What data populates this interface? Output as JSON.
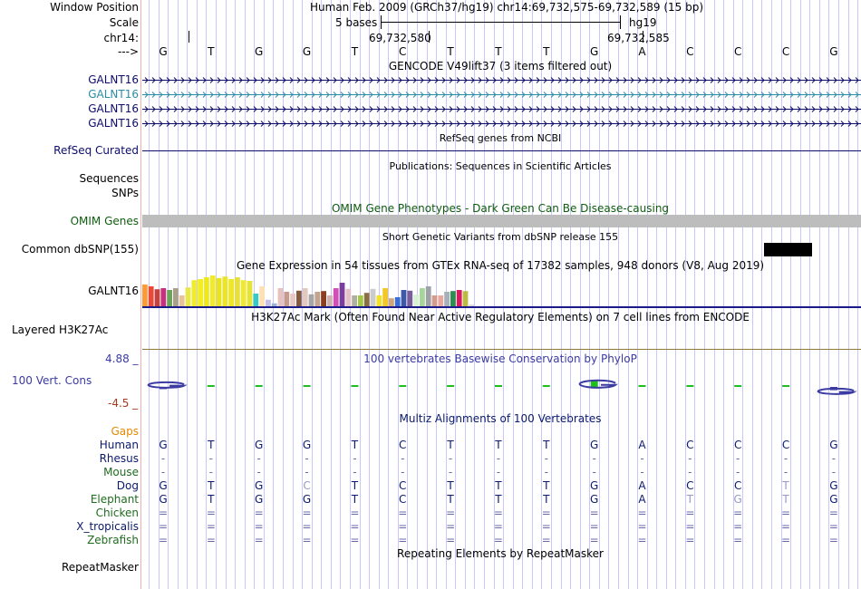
{
  "header": {
    "window_position_label": "Window Position",
    "scale_label": "Scale",
    "chrom_label": "chr14:",
    "arrow_label": "--->",
    "assembly_text": "Human Feb. 2009 (GRCh37/hg19)   chr14:69,732,575-69,732,589 (15 bp)",
    "scale_text": "5 bases",
    "db_text": "hg19",
    "pos_left": "69,732,580",
    "pos_right": "69,732,585"
  },
  "sequence": [
    "G",
    "T",
    "G",
    "G",
    "T",
    "C",
    "T",
    "T",
    "T",
    "G",
    "A",
    "C",
    "C",
    "C",
    "G"
  ],
  "gencode": {
    "title": "GENCODE V49lift37 (3 items filtered out)",
    "items": [
      {
        "label": "GALNT16",
        "color": "#0d0d6b"
      },
      {
        "label": "GALNT16",
        "color": "#2a8ea5"
      },
      {
        "label": "GALNT16",
        "color": "#0d0d6b"
      },
      {
        "label": "GALNT16",
        "color": "#0d0d6b"
      }
    ]
  },
  "refseq": {
    "label": "RefSeq Curated",
    "title": "RefSeq genes from NCBI"
  },
  "publications": {
    "title": "Publications: Sequences in Scientific Articles"
  },
  "sequences_label": "Sequences",
  "snps_label": "SNPs",
  "omim": {
    "label": "OMIM Genes",
    "title": "OMIM Gene Phenotypes - Dark Green Can Be Disease-causing"
  },
  "dbsnp": {
    "label": "Common dbSNP(155)",
    "title": "Short Genetic Variants from dbSNP release 155"
  },
  "gtex": {
    "label": "GALNT16",
    "title": "Gene Expression in 54 tissues from GTEx RNA-seq of 17382 samples, 948 donors (V8, Aug 2019)",
    "bar_levels": [
      0.6,
      0.55,
      0.47,
      0.5,
      0.45,
      0.5,
      0.3,
      0.52,
      0.72,
      0.75,
      0.8,
      0.85,
      0.78,
      0.82,
      0.75,
      0.8,
      0.72,
      0.7,
      0.35,
      0.55,
      0.18,
      0.08,
      0.5,
      0.4,
      0.35,
      0.43,
      0.5,
      0.33,
      0.4,
      0.42,
      0.3,
      0.5,
      0.65,
      0.48,
      0.3,
      0.3,
      0.37,
      0.48,
      0.3,
      0.5,
      0.22,
      0.25,
      0.45,
      0.43,
      0.32,
      0.5,
      0.55,
      0.3,
      0.3,
      0.4,
      0.42,
      0.45,
      0.42,
      0.05
    ],
    "bar_colors": [
      "#ff9933",
      "#e8493a",
      "#c0433f",
      "#c82f7f",
      "#6ea35a",
      "#aaa089",
      "#e6c39b",
      "#e8e84d",
      "#f0ec2b",
      "#f2ee22",
      "#eeea1a",
      "#f0ea32",
      "#e9e422",
      "#ebe428",
      "#ede62a",
      "#e8e035",
      "#efe838",
      "#e6e337",
      "#38c8c8",
      "#ffe0b5",
      "#c4bfe6",
      "#9ab4d6",
      "#e6c1c0",
      "#c79a8c",
      "#e6c8c4",
      "#855a3e",
      "#e3c8c2",
      "#a6a6a6",
      "#c4a48e",
      "#8c3f1f",
      "#d0b0b0",
      "#d24fb8",
      "#7b3d9e",
      "#e6c0c8",
      "#b0b0a0",
      "#a3c845",
      "#8a6f42",
      "#cccccc",
      "#f2e22a",
      "#f2c72a",
      "#d1a575",
      "#3a6ed6",
      "#3d5aa6",
      "#7a5d9a",
      "#d8f0d4",
      "#a6d69a",
      "#9ea1a6",
      "#d49c8c",
      "#e8a8a0",
      "#a6b0b8",
      "#2d8f4e",
      "#d81b60",
      "#bcbc44",
      "#dddddd"
    ]
  },
  "h3k27ac": {
    "label": "Layered H3K27Ac",
    "title": "H3K27Ac Mark (Often Found Near Active Regulatory Elements) on 7 cell lines from ENCODE"
  },
  "phylop": {
    "label": "100 Vert. Cons",
    "title": "100 vertebrates Basewise Conservation by PhyloP",
    "max": "4.88 _",
    "min": "-4.5 _",
    "scores": [
      -0.4,
      0.1,
      0,
      0,
      0.1,
      0,
      0,
      0,
      0,
      1.2,
      0,
      0.1,
      0.1,
      0,
      -0.6
    ]
  },
  "multiz": {
    "title": "Multiz Alignments of 100 Vertebrates",
    "gaps_label": "Gaps",
    "species": [
      {
        "name": "Human",
        "color": "#0b1a6b",
        "bases": [
          "G",
          "T",
          "G",
          "G",
          "T",
          "C",
          "T",
          "T",
          "T",
          "G",
          "A",
          "C",
          "C",
          "C",
          "G"
        ]
      },
      {
        "name": "Rhesus",
        "color": "#0b1a6b",
        "bases": [
          "-",
          "-",
          "-",
          "-",
          "-",
          "-",
          "-",
          "-",
          "-",
          "-",
          "-",
          "-",
          "-",
          "-",
          "-"
        ]
      },
      {
        "name": "Mouse",
        "color": "#1f6b1f",
        "bases": [
          "-",
          "-",
          "-",
          "-",
          "-",
          "-",
          "-",
          "-",
          "-",
          "-",
          "-",
          "-",
          "-",
          "-",
          "-"
        ]
      },
      {
        "name": "Dog",
        "color": "#0b1a6b",
        "bases": [
          "G",
          "T",
          "G",
          "C",
          "T",
          "C",
          "T",
          "T",
          "T",
          "G",
          "A",
          "C",
          "C",
          "T",
          "G"
        ]
      },
      {
        "name": "Elephant",
        "color": "#1f6b1f",
        "bases": [
          "G",
          "T",
          "G",
          "G",
          "T",
          "C",
          "T",
          "T",
          "T",
          "G",
          "A",
          "T",
          "G",
          "T",
          "G"
        ]
      },
      {
        "name": "Chicken",
        "color": "#1f6b1f",
        "bases": [
          "=",
          "=",
          "=",
          "=",
          "=",
          "=",
          "=",
          "=",
          "=",
          "=",
          "=",
          "=",
          "=",
          "=",
          "="
        ]
      },
      {
        "name": "X_tropicalis",
        "color": "#0b1a6b",
        "bases": [
          "=",
          "=",
          "=",
          "=",
          "=",
          "=",
          "=",
          "=",
          "=",
          "=",
          "=",
          "=",
          "=",
          "=",
          "="
        ]
      },
      {
        "name": "Zebrafish",
        "color": "#1f6b1f",
        "bases": [
          "=",
          "=",
          "=",
          "=",
          "=",
          "=",
          "=",
          "=",
          "=",
          "=",
          "=",
          "=",
          "=",
          "=",
          "="
        ]
      }
    ]
  },
  "repeatmasker": {
    "label": "RepeatMasker",
    "title": "Repeating Elements by RepeatMasker"
  },
  "colors": {
    "label_blue": "#0d0d6b",
    "omim_green": "#0f5c0f",
    "gaps_orange": "#e58a00",
    "phylop_blue": "#3b3ba1",
    "phylop_red": "#a33b1f",
    "grid_blue": "#c8c8ff",
    "gutter_red": "#f0b0b0"
  }
}
